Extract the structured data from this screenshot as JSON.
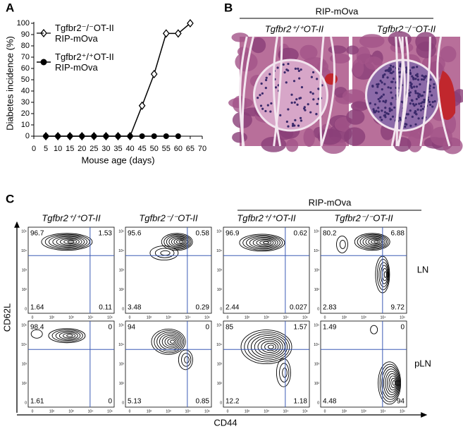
{
  "panel_labels": [
    "A",
    "B",
    "C"
  ],
  "chart_data": {
    "type": "line",
    "y_label": "Diabetes incidence (%)",
    "x_label": "Mouse age (days)",
    "x": [
      5,
      10,
      15,
      20,
      25,
      30,
      35,
      40,
      45,
      50,
      55,
      60,
      65
    ],
    "series": [
      {
        "name": "Tgfbr2⁻/⁻OT-II RIP-mOva",
        "color": "#000000",
        "marker": "diamond-open",
        "values": [
          0,
          0,
          0,
          0,
          0,
          0,
          0,
          0,
          27,
          55,
          91,
          91,
          100
        ]
      },
      {
        "name": "Tgfbr2⁺/⁺OT-II RIP-mOva",
        "color": "#000000",
        "marker": "circle-filled",
        "values": [
          0,
          0,
          0,
          0,
          0,
          0,
          0,
          0,
          0,
          0,
          0,
          0,
          null
        ]
      }
    ],
    "xlim": [
      0,
      70
    ],
    "xticks": [
      0,
      5,
      10,
      15,
      20,
      25,
      30,
      35,
      40,
      45,
      50,
      55,
      60,
      65,
      70
    ],
    "ylim": [
      0,
      100
    ],
    "yticks": [
      0,
      10,
      20,
      30,
      40,
      50,
      60,
      70,
      80,
      90,
      100
    ]
  },
  "histology": {
    "header": "RIP-mOva",
    "columns": [
      "Tgfbr2⁺/⁺OT-II",
      "Tgfbr2⁻/⁻OT-II"
    ]
  },
  "flow": {
    "header": "RIP-mOva",
    "columns": [
      "Tgfbr2⁺/⁺OT-II",
      "Tgfbr2⁻/⁻OT-II",
      "Tgfbr2⁺/⁺OT-II",
      "Tgfbr2⁻/⁻OT-II"
    ],
    "rows": [
      "LN",
      "pLN"
    ],
    "y_label": "CD62L",
    "x_label": "CD44",
    "axis_ticks": [
      "0",
      "10²",
      "10³",
      "10⁴",
      "10⁵"
    ],
    "quadrants": [
      [
        [
          96.7,
          1.53,
          1.64,
          0.11
        ],
        [
          95.6,
          0.58,
          3.48,
          0.29
        ],
        [
          96.9,
          0.62,
          2.44,
          0.027
        ],
        [
          80.2,
          6.88,
          2.83,
          9.72
        ]
      ],
      [
        [
          98.4,
          0,
          1.61,
          0
        ],
        [
          94,
          0,
          5.13,
          0.85
        ],
        [
          85,
          1.57,
          12.2,
          1.18
        ],
        [
          1.49,
          0,
          4.48,
          94
        ]
      ]
    ]
  }
}
